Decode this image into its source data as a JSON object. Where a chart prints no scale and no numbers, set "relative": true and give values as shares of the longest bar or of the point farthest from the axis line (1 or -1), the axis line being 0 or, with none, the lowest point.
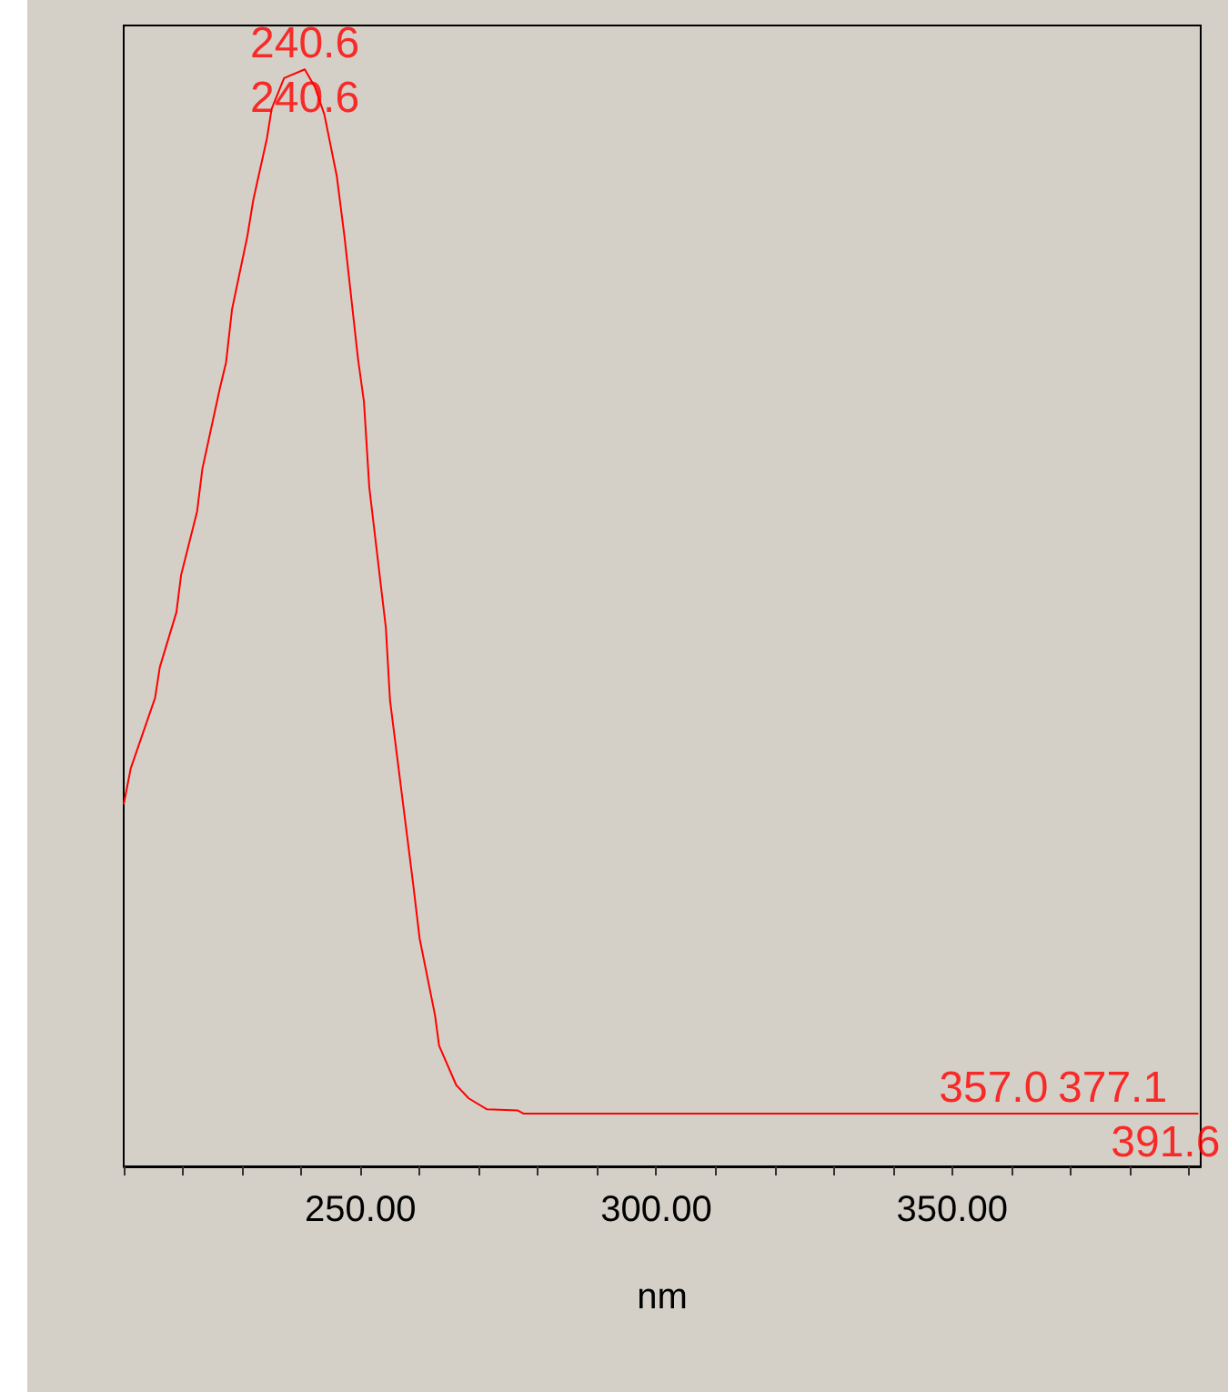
{
  "chart_data": {
    "type": "line",
    "relative": true,
    "xlabel": "nm",
    "xlim": [
      210,
      392
    ],
    "xticks": [
      {
        "value": 210,
        "label": null
      },
      {
        "value": 220,
        "label": null
      },
      {
        "value": 230,
        "label": null
      },
      {
        "value": 240,
        "label": null
      },
      {
        "value": 250,
        "label": "250.00"
      },
      {
        "value": 260,
        "label": null
      },
      {
        "value": 270,
        "label": null
      },
      {
        "value": 280,
        "label": null
      },
      {
        "value": 290,
        "label": null
      },
      {
        "value": 300,
        "label": "300.00"
      },
      {
        "value": 310,
        "label": null
      },
      {
        "value": 320,
        "label": null
      },
      {
        "value": 330,
        "label": null
      },
      {
        "value": 340,
        "label": null
      },
      {
        "value": 350,
        "label": "350.00"
      },
      {
        "value": 360,
        "label": null
      },
      {
        "value": 370,
        "label": null
      },
      {
        "value": 380,
        "label": null
      },
      {
        "value": 390,
        "label": null
      }
    ],
    "x": [
      210,
      211.2,
      215.3,
      216.1,
      218.9,
      219.7,
      222.4,
      223.3,
      226.2,
      227.3,
      228.3,
      230.9,
      231.9,
      234.2,
      235,
      237.1,
      240.6,
      242.3,
      243.9,
      246,
      247.3,
      249.6,
      250.6,
      251.5,
      254.3,
      255,
      258.9,
      260,
      262.6,
      263.3,
      266.2,
      268.3,
      271.4,
      276.6,
      277.6,
      300,
      350,
      391.6
    ],
    "series": [
      {
        "color": "#ff0000",
        "values": [
          0.33,
          0.363,
          0.427,
          0.455,
          0.505,
          0.539,
          0.597,
          0.636,
          0.708,
          0.733,
          0.781,
          0.848,
          0.881,
          0.937,
          0.964,
          0.992,
          1,
          0.984,
          0.959,
          0.903,
          0.848,
          0.736,
          0.697,
          0.619,
          0.491,
          0.425,
          0.258,
          0.208,
          0.138,
          0.11,
          0.074,
          0.062,
          0.052,
          0.051,
          0.048,
          0.048,
          0.048,
          0.048
        ]
      }
    ],
    "annotations": [
      {
        "text": "240.6",
        "x": 240.6,
        "y": 1
      },
      {
        "text": "240.6",
        "x": 240.6,
        "y": 1
      },
      {
        "text": "357.0",
        "x": 357,
        "y": 0.048
      },
      {
        "text": "377.1",
        "x": 377.1,
        "y": 0.048
      },
      {
        "text": "391.6",
        "x": 391.6,
        "y": 0.048
      }
    ],
    "marker": "none",
    "line_style": "solid"
  }
}
